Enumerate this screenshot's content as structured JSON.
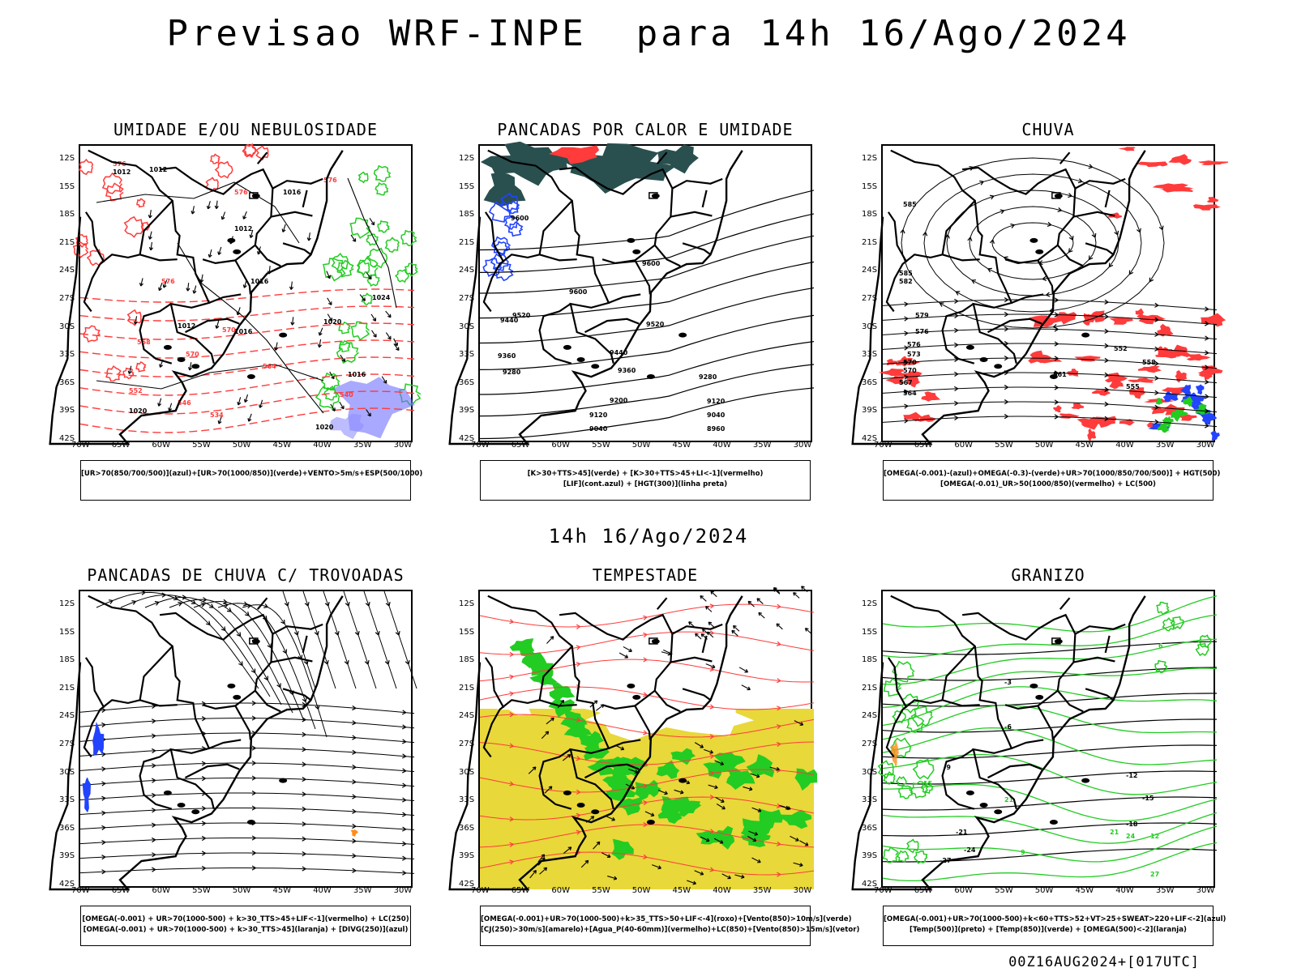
{
  "title": "Previsao WRF-INPE  para 14h 16/Ago/2024",
  "subtitle": "14h 16/Ago/2024",
  "footer": "00Z16AUG2024+[017UTC]",
  "lat_labels": [
    "12S",
    "15S",
    "18S",
    "21S",
    "24S",
    "27S",
    "30S",
    "33S",
    "36S",
    "39S",
    "42S"
  ],
  "lon_labels": [
    "70W",
    "65W",
    "60W",
    "55W",
    "50W",
    "45W",
    "40W",
    "35W",
    "30W"
  ],
  "colors": {
    "red": "#ff3b3b",
    "green": "#22cc22",
    "blue": "#2244ff",
    "darkteal": "#2a4f4f",
    "yellow": "#e8d83a",
    "orange": "#ff8c1a",
    "black": "#000000"
  },
  "panels": [
    {
      "id": "umidade",
      "title": "UMIDADE E/OU NEBULOSIDADE",
      "legend": [
        "[UR>70(850/700/500)](azul)+[UR>70(1000/850)](verde)+VENTO>5m/s+ESP(500/1000)"
      ],
      "contour_labels": [
        "1012",
        "1012",
        "1012",
        "1016",
        "1016",
        "1020",
        "1024",
        "1016",
        "1012",
        "1016",
        "1020",
        "1020",
        "576",
        "576",
        "576",
        "576",
        "570",
        "570",
        "564",
        "558",
        "552",
        "546",
        "540",
        "534"
      ]
    },
    {
      "id": "pancadas_calor",
      "title": "PANCADAS POR CALOR E UMIDADE",
      "legend": [
        "[K>30+TTS>45](verde) + [K>30+TTS>45+LI<-1](vermelho)",
        "[LIF](cont.azul) + [HGT(300)](linha preta)"
      ],
      "contour_labels": [
        "9600",
        "9600",
        "9600",
        "9520",
        "9520",
        "9440",
        "9440",
        "9360",
        "9360",
        "9280",
        "9280",
        "9200",
        "9120",
        "9120",
        "9040",
        "9040",
        "8960"
      ]
    },
    {
      "id": "chuva",
      "title": "CHUVA",
      "legend": [
        "[OMEGA(-0.001)-(azul)+OMEGA(-0.3)-(verde)+UR>70(1000/850/700/500)] + HGT(500)",
        "[OMEGA(-0.01)_UR>50(1000/850)(vermelho) + LC(500)"
      ],
      "contour_labels": [
        "585",
        "585",
        "582",
        "579",
        "576",
        "576",
        "573",
        "570",
        "570",
        "567",
        "564",
        "561",
        "558",
        "555",
        "552"
      ]
    },
    {
      "id": "trovoadas",
      "title": "PANCADAS DE CHUVA C/ TROVOADAS",
      "legend": [
        "[OMEGA(-0.001) + UR>70(1000-500) + k>30_TTS>45+LIF<-1](vermelho) + LC(250)",
        "[OMEGA(-0.001) + UR>70(1000-500) + k>30_TTS>45](laranja) + [DIVG(250)](azul)"
      ]
    },
    {
      "id": "tempestade",
      "title": "TEMPESTADE",
      "legend": [
        "[OMEGA(-0.001)+UR>70(1000-500)+k>35_TTS>50+LIF<-4](roxo)+[Vento(850)>10m/s](verde)",
        "[CJ(250)>30m/s](amarelo)+[Agua_P(40-60mm)](vermelho)+LC(850)+[Vento(850)>15m/s](vetor)"
      ]
    },
    {
      "id": "granizo",
      "title": "GRANIZO",
      "legend": [
        "[OMEGA(-0.001)+UR>70(1000-500)+k<60+TTS>52+VT>25+SWEAT>220+LIF<-2](azul)",
        "[Temp(500)](preto) + [Temp(850)](verde) + [OMEGA(500)<-2](laranja)"
      ],
      "contour_labels": [
        "-3",
        "-6",
        "-9",
        "-12",
        "-15",
        "-18",
        "-21",
        "-24",
        "-27",
        "6",
        "9",
        "12",
        "15",
        "21",
        "21",
        "24",
        "27"
      ]
    }
  ]
}
